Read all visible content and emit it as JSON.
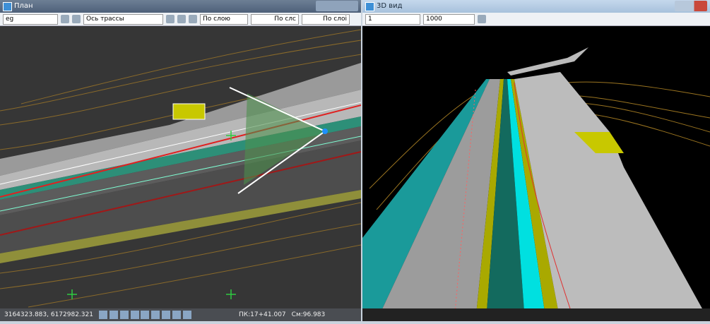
{
  "left_window": {
    "title": "План",
    "toolbar": {
      "layer": "eg",
      "object": "Ось трассы",
      "style": "По слою",
      "linetype": "По слс",
      "lineweight": "По слоі"
    },
    "status": {
      "coords": "3164323.883, 6172982.321",
      "station": "ПК:17+41.007",
      "offset": "См:96.983"
    }
  },
  "right_window": {
    "title": "3D вид",
    "toolbar": {
      "view": "1",
      "scale": "1000"
    }
  }
}
